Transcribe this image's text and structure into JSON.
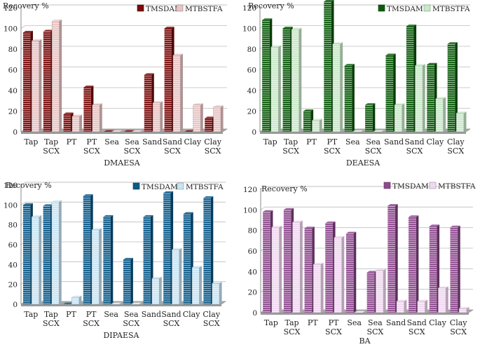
{
  "chart_data": [
    {
      "type": "bar",
      "title": "DMAESA",
      "ylabel": "Recovery %",
      "xlabel": "DMAESA",
      "categories": [
        [
          "Tap"
        ],
        [
          "Tap",
          "SCX"
        ],
        [
          "PT"
        ],
        [
          "PT",
          "SCX"
        ],
        [
          "Sea"
        ],
        [
          "Sea",
          "SCX"
        ],
        [
          "Sand"
        ],
        [
          "Sand",
          "SCX"
        ],
        [
          "Clay"
        ],
        [
          "Clay",
          "SCX"
        ]
      ],
      "series": [
        {
          "name": "TMSDAM",
          "color": "#7a0c0c",
          "values": [
            96,
            97,
            17,
            43,
            0,
            0,
            55,
            100,
            0,
            13
          ]
        },
        {
          "name": "MTBSTFA",
          "color": "#e8c4c4",
          "values": [
            88,
            107,
            15,
            26,
            0,
            0,
            28,
            74,
            26,
            24
          ]
        }
      ],
      "ylim": [
        0,
        120
      ],
      "yticks": [
        0,
        20,
        40,
        60,
        80,
        100,
        120
      ],
      "grid": true,
      "legend": "top-right"
    },
    {
      "type": "bar",
      "title": "DEAESA",
      "ylabel": "Recovery %",
      "xlabel": "DEAESA",
      "categories": [
        [
          "Tap"
        ],
        [
          "Tap",
          "SCX"
        ],
        [
          "PT"
        ],
        [
          "PT",
          "SCX"
        ],
        [
          "Sea"
        ],
        [
          "Sea",
          "SCX"
        ],
        [
          "Sand"
        ],
        [
          "Sand",
          "SCX"
        ],
        [
          "Clay"
        ],
        [
          "Clay",
          "SCX"
        ]
      ],
      "series": [
        {
          "name": "TMSDAM",
          "color": "#0d5c0d",
          "values": [
            108,
            100,
            20,
            126,
            64,
            26,
            74,
            102,
            65,
            85
          ]
        },
        {
          "name": "MTBSTFA",
          "color": "#c8e8c8",
          "values": [
            82,
            99,
            11,
            85,
            0,
            0,
            26,
            64,
            32,
            18
          ]
        }
      ],
      "ylim": [
        0,
        120
      ],
      "yticks": [
        0,
        20,
        40,
        60,
        80,
        100,
        120
      ],
      "grid": true,
      "legend": "top-right"
    },
    {
      "type": "bar",
      "title": "DIPAESA",
      "ylabel": "Recovery %",
      "xlabel": "DIPAESA",
      "categories": [
        [
          "Tap"
        ],
        [
          "Tap",
          "SCX"
        ],
        [
          "PT"
        ],
        [
          "PT",
          "SCX"
        ],
        [
          "Sea"
        ],
        [
          "Sea",
          "SCX"
        ],
        [
          "Sand"
        ],
        [
          "Sand",
          "SCX"
        ],
        [
          "Clay"
        ],
        [
          "Clay",
          "SCX"
        ]
      ],
      "series": [
        {
          "name": "TMSDAM",
          "color": "#0b5a8a",
          "values": [
            100,
            99,
            0,
            109,
            88,
            45,
            88,
            112,
            91,
            107
          ]
        },
        {
          "name": "MTBSTFA",
          "color": "#c8e4f4",
          "values": [
            88,
            103,
            7,
            75,
            0,
            0,
            26,
            55,
            37,
            21
          ]
        }
      ],
      "ylim": [
        0,
        120
      ],
      "yticks": [
        0,
        20,
        40,
        60,
        80,
        100,
        120
      ],
      "grid": true,
      "legend": "top-right"
    },
    {
      "type": "bar",
      "title": "BA",
      "ylabel": "Recovery %",
      "xlabel": "BA",
      "categories": [
        [
          "Tap"
        ],
        [
          "Tap",
          "SCX"
        ],
        [
          "PT"
        ],
        [
          "PT",
          "SCX"
        ],
        [
          "Sea"
        ],
        [
          "Sea",
          "SCX"
        ],
        [
          "Sand"
        ],
        [
          "Sand",
          "SCX"
        ],
        [
          "Clay"
        ],
        [
          "Clay",
          "SCX"
        ]
      ],
      "series": [
        {
          "name": "TMSDAM",
          "color": "#8e4a8e",
          "values": [
            98,
            100,
            82,
            87,
            77,
            39,
            104,
            93,
            84,
            83
          ]
        },
        {
          "name": "MTBSTFA",
          "color": "#f0d8f0",
          "values": [
            83,
            88,
            47,
            73,
            0,
            41,
            11,
            11,
            24,
            4
          ]
        }
      ],
      "ylim": [
        0,
        120
      ],
      "yticks": [
        0,
        20,
        40,
        60,
        80,
        100,
        120
      ],
      "grid": true,
      "legend": "top-right"
    }
  ]
}
